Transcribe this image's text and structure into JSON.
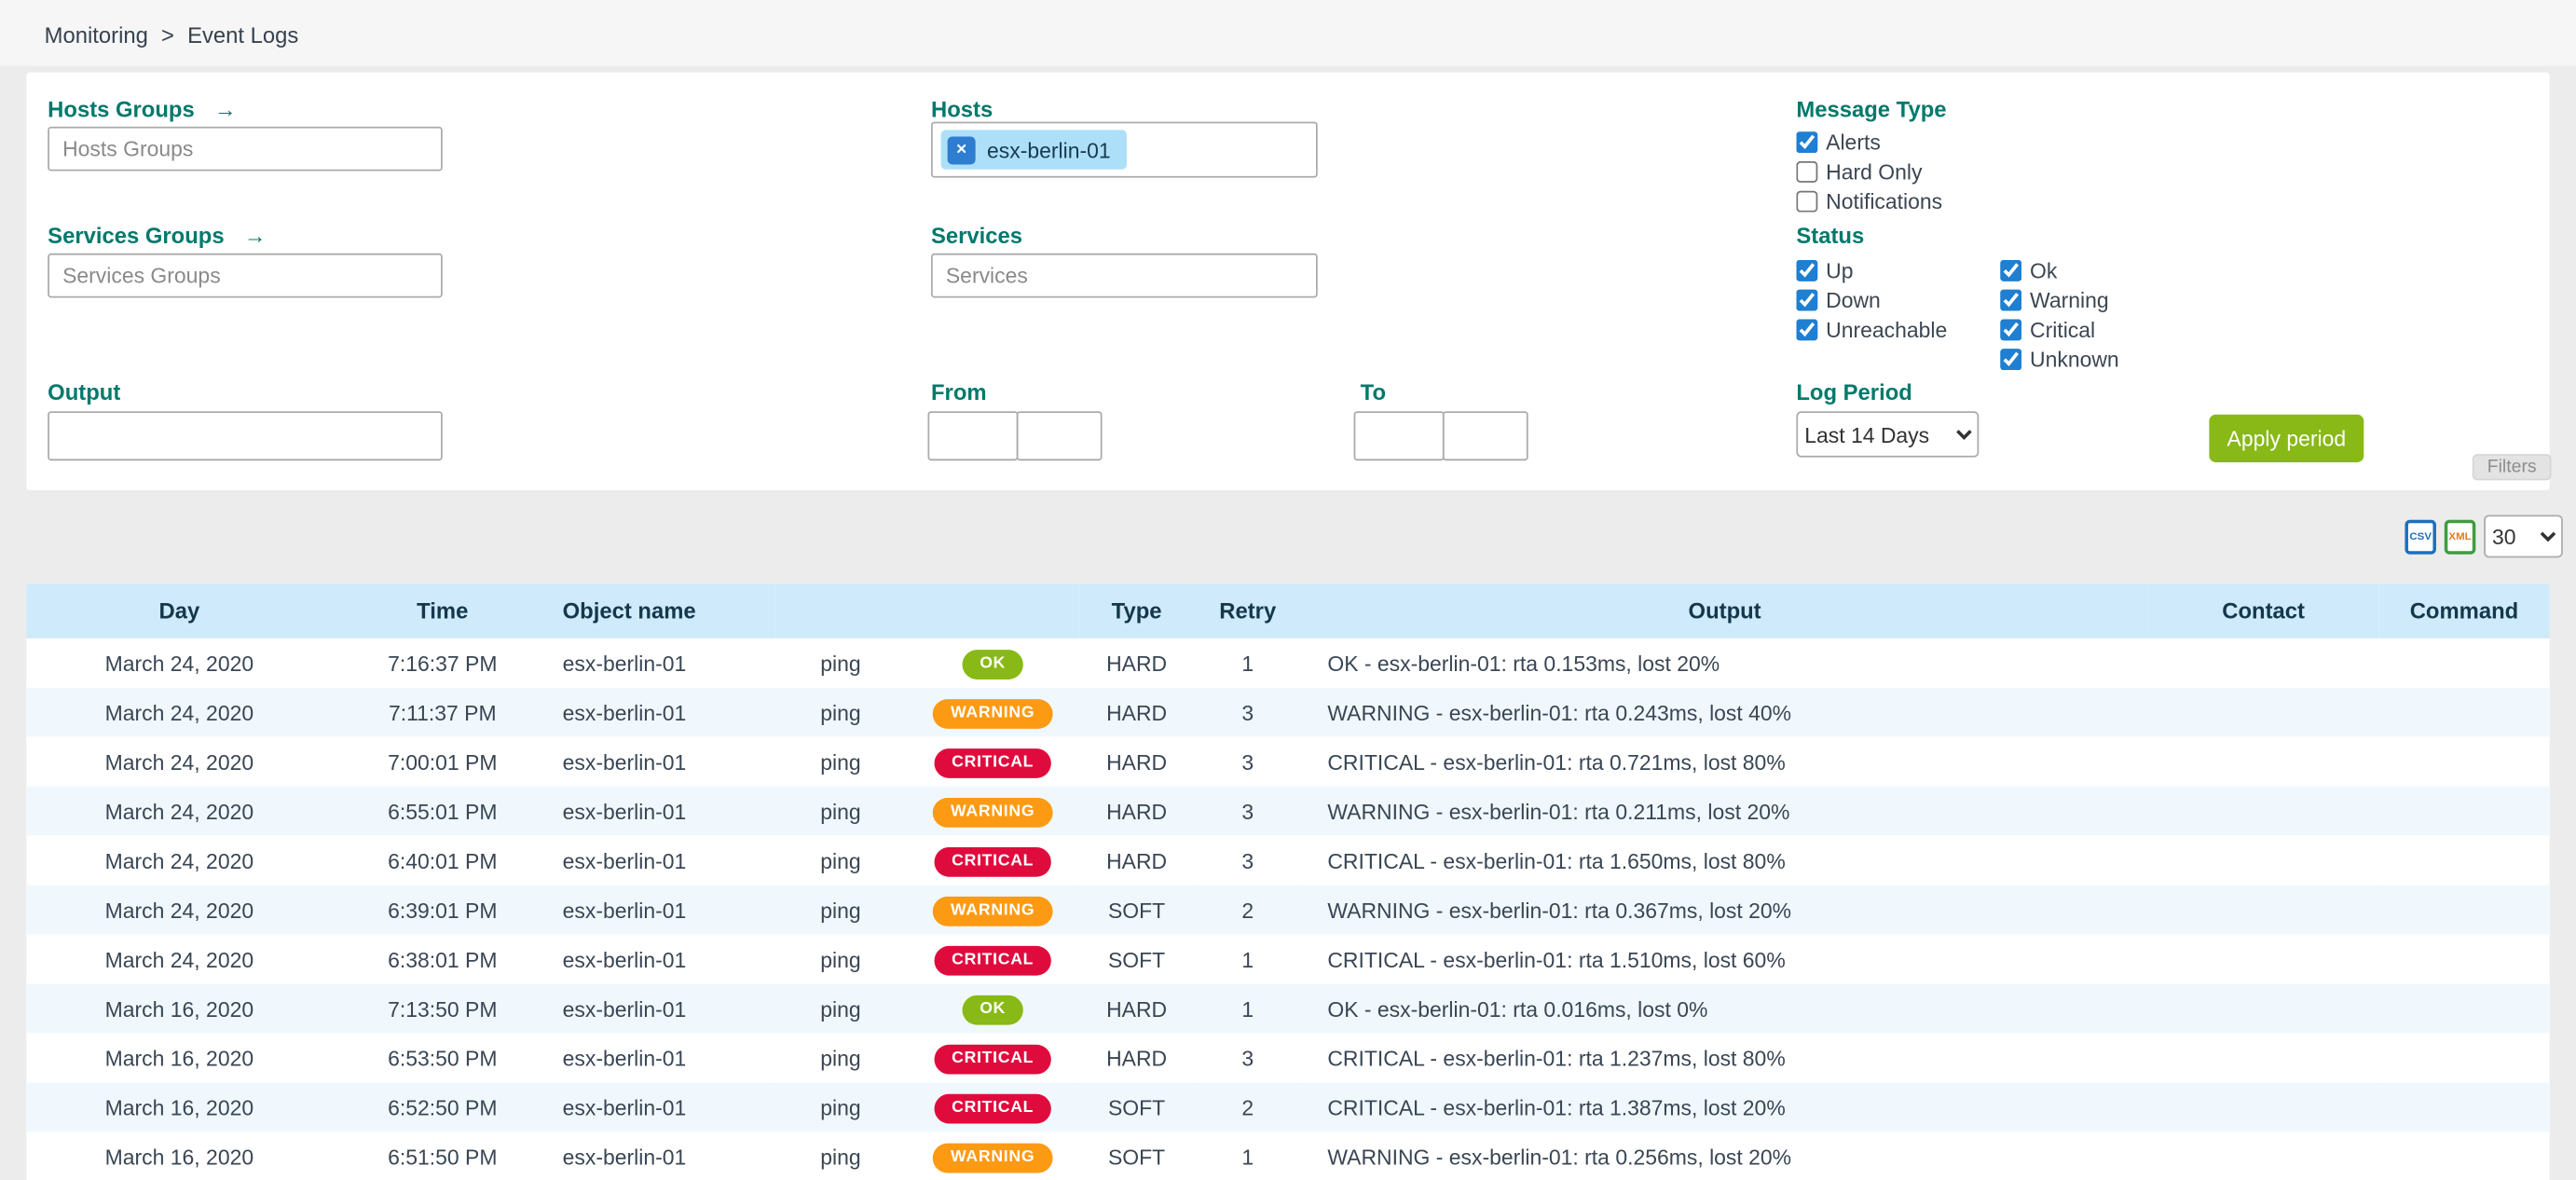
{
  "breadcrumb": {
    "items": [
      {
        "label": "Monitoring"
      },
      {
        "label": "Event Logs"
      }
    ],
    "separator": ">"
  },
  "filter_panel": {
    "hosts_groups": {
      "label": "Hosts Groups",
      "placeholder": "Hosts Groups"
    },
    "hosts": {
      "label": "Hosts",
      "selected_tag": "esx-berlin-01",
      "remove_icon": "×"
    },
    "services_groups": {
      "label": "Services Groups",
      "placeholder": "Services Groups"
    },
    "services": {
      "label": "Services",
      "placeholder": "Services"
    },
    "output": {
      "label": "Output",
      "value": ""
    },
    "from": {
      "label": "From",
      "date_value": "",
      "time_value": ""
    },
    "to": {
      "label": "To",
      "date_value": "",
      "time_value": ""
    },
    "message_type": {
      "label": "Message Type",
      "options": [
        {
          "label": "Alerts",
          "checked": true
        },
        {
          "label": "Hard Only",
          "checked": false
        },
        {
          "label": "Notifications",
          "checked": false
        }
      ]
    },
    "status": {
      "label": "Status",
      "column1": [
        {
          "label": "Up",
          "checked": true
        },
        {
          "label": "Down",
          "checked": true
        },
        {
          "label": "Unreachable",
          "checked": true
        }
      ],
      "column2": [
        {
          "label": "Ok",
          "checked": true
        },
        {
          "label": "Warning",
          "checked": true
        },
        {
          "label": "Critical",
          "checked": true
        },
        {
          "label": "Unknown",
          "checked": true
        }
      ]
    },
    "log_period": {
      "label": "Log Period",
      "selected": "Last 14 Days"
    },
    "apply_button_label": "Apply period",
    "filters_toggle_label": "Filters",
    "goto_arrow": "→"
  },
  "toolbar": {
    "csv_export_label": "CSV",
    "xml_export_label": "XML",
    "rows_per_page": "30"
  },
  "table": {
    "headers": [
      "Day",
      "Time",
      "Object name",
      "",
      "",
      "Type",
      "Retry",
      "Output",
      "Contact",
      "Command"
    ],
    "rows": [
      {
        "day": "March 24, 2020",
        "time": "7:16:37 PM",
        "object": "esx-berlin-01",
        "service": "ping",
        "status": "OK",
        "type": "HARD",
        "retry": "1",
        "output": "OK - esx-berlin-01: rta 0.153ms, lost 20%",
        "contact": "",
        "command": ""
      },
      {
        "day": "March 24, 2020",
        "time": "7:11:37 PM",
        "object": "esx-berlin-01",
        "service": "ping",
        "status": "WARNING",
        "type": "HARD",
        "retry": "3",
        "output": "WARNING - esx-berlin-01: rta 0.243ms, lost 40%",
        "contact": "",
        "command": ""
      },
      {
        "day": "March 24, 2020",
        "time": "7:00:01 PM",
        "object": "esx-berlin-01",
        "service": "ping",
        "status": "CRITICAL",
        "type": "HARD",
        "retry": "3",
        "output": "CRITICAL - esx-berlin-01: rta 0.721ms, lost 80%",
        "contact": "",
        "command": ""
      },
      {
        "day": "March 24, 2020",
        "time": "6:55:01 PM",
        "object": "esx-berlin-01",
        "service": "ping",
        "status": "WARNING",
        "type": "HARD",
        "retry": "3",
        "output": "WARNING - esx-berlin-01: rta 0.211ms, lost 20%",
        "contact": "",
        "command": ""
      },
      {
        "day": "March 24, 2020",
        "time": "6:40:01 PM",
        "object": "esx-berlin-01",
        "service": "ping",
        "status": "CRITICAL",
        "type": "HARD",
        "retry": "3",
        "output": "CRITICAL - esx-berlin-01: rta 1.650ms, lost 80%",
        "contact": "",
        "command": ""
      },
      {
        "day": "March 24, 2020",
        "time": "6:39:01 PM",
        "object": "esx-berlin-01",
        "service": "ping",
        "status": "WARNING",
        "type": "SOFT",
        "retry": "2",
        "output": "WARNING - esx-berlin-01: rta 0.367ms, lost 20%",
        "contact": "",
        "command": ""
      },
      {
        "day": "March 24, 2020",
        "time": "6:38:01 PM",
        "object": "esx-berlin-01",
        "service": "ping",
        "status": "CRITICAL",
        "type": "SOFT",
        "retry": "1",
        "output": "CRITICAL - esx-berlin-01: rta 1.510ms, lost 60%",
        "contact": "",
        "command": ""
      },
      {
        "day": "March 16, 2020",
        "time": "7:13:50 PM",
        "object": "esx-berlin-01",
        "service": "ping",
        "status": "OK",
        "type": "HARD",
        "retry": "1",
        "output": "OK - esx-berlin-01: rta 0.016ms, lost 0%",
        "contact": "",
        "command": ""
      },
      {
        "day": "March 16, 2020",
        "time": "6:53:50 PM",
        "object": "esx-berlin-01",
        "service": "ping",
        "status": "CRITICAL",
        "type": "HARD",
        "retry": "3",
        "output": "CRITICAL - esx-berlin-01: rta 1.237ms, lost 80%",
        "contact": "",
        "command": ""
      },
      {
        "day": "March 16, 2020",
        "time": "6:52:50 PM",
        "object": "esx-berlin-01",
        "service": "ping",
        "status": "CRITICAL",
        "type": "SOFT",
        "retry": "2",
        "output": "CRITICAL - esx-berlin-01: rta 1.387ms, lost 20%",
        "contact": "",
        "command": ""
      },
      {
        "day": "March 16, 2020",
        "time": "6:51:50 PM",
        "object": "esx-berlin-01",
        "service": "ping",
        "status": "WARNING",
        "type": "SOFT",
        "retry": "1",
        "output": "WARNING - esx-berlin-01: rta 0.256ms, lost 20%",
        "contact": "",
        "command": ""
      }
    ]
  },
  "colors": {
    "label_teal": "#00796b",
    "apply_button_green": "#88b917",
    "status_ok_green": "#88b917",
    "status_warning_orange": "#fd9a14",
    "status_critical_red": "#e00b3d",
    "checkbox_blue": "#1f7fd1",
    "table_header_blue": "#cfeafa",
    "host_tag_blue": "#ade0f8"
  }
}
